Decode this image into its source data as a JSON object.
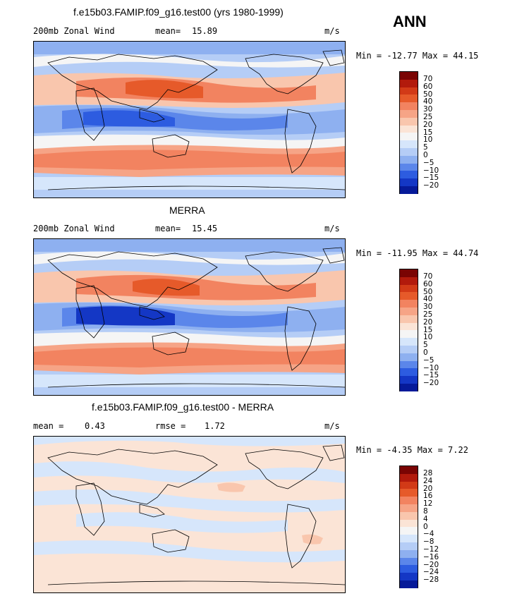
{
  "season": "ANN",
  "panels": [
    {
      "title": "f.e15b03.FAMIP.f09_g16.test00 (yrs 1980-1999)",
      "left_label": "200mb Zonal Wind",
      "stat1_label": "mean=",
      "stat1_value": "15.89",
      "stat2_label": "",
      "stat2_value": "",
      "units": "m/s",
      "minmax": "Min = -12.77 Max =  44.15",
      "colorbar_labels": [
        "70",
        "60",
        "50",
        "40",
        "30",
        "25",
        "20",
        "15",
        "10",
        "5",
        "0",
        "−5",
        "−10",
        "−15",
        "−20"
      ]
    },
    {
      "title": "MERRA",
      "left_label": "200mb Zonal Wind",
      "stat1_label": "mean=",
      "stat1_value": "15.45",
      "stat2_label": "",
      "stat2_value": "",
      "units": "m/s",
      "minmax": "Min = -11.95 Max =  44.74",
      "colorbar_labels": [
        "70",
        "60",
        "50",
        "40",
        "30",
        "25",
        "20",
        "15",
        "10",
        "5",
        "0",
        "−5",
        "−10",
        "−15",
        "−20"
      ]
    },
    {
      "title": "f.e15b03.FAMIP.f09_g16.test00 - MERRA",
      "left_label": "",
      "stat1_label": "mean =",
      "stat1_value": "0.43",
      "stat2_label": "rmse =",
      "stat2_value": "1.72",
      "units": "m/s",
      "minmax": "Min =  -4.35 Max =   7.22",
      "colorbar_labels": [
        "28",
        "24",
        "20",
        "16",
        "12",
        "8",
        "4",
        "0",
        "−4",
        "−8",
        "−12",
        "−16",
        "−20",
        "−24",
        "−28"
      ]
    }
  ],
  "colors": {
    "field_scale": [
      "#7a0403",
      "#b21a0c",
      "#d23a17",
      "#e65a2a",
      "#f28360",
      "#f6a486",
      "#f9c6ad",
      "#fbe4d6",
      "#f5f5f5",
      "#d6e6fb",
      "#b5cdf6",
      "#8eb0f0",
      "#5b86ea",
      "#2d5ce0",
      "#1437c5",
      "#061a99"
    ],
    "diff_scale": [
      "#7a0403",
      "#b21a0c",
      "#d23a17",
      "#e65a2a",
      "#f28360",
      "#f6a486",
      "#f9c6ad",
      "#fbe4d6",
      "#f5f5f5",
      "#d6e6fb",
      "#b5cdf6",
      "#8eb0f0",
      "#5b86ea",
      "#2d5ce0",
      "#1437c5",
      "#061a99"
    ]
  }
}
